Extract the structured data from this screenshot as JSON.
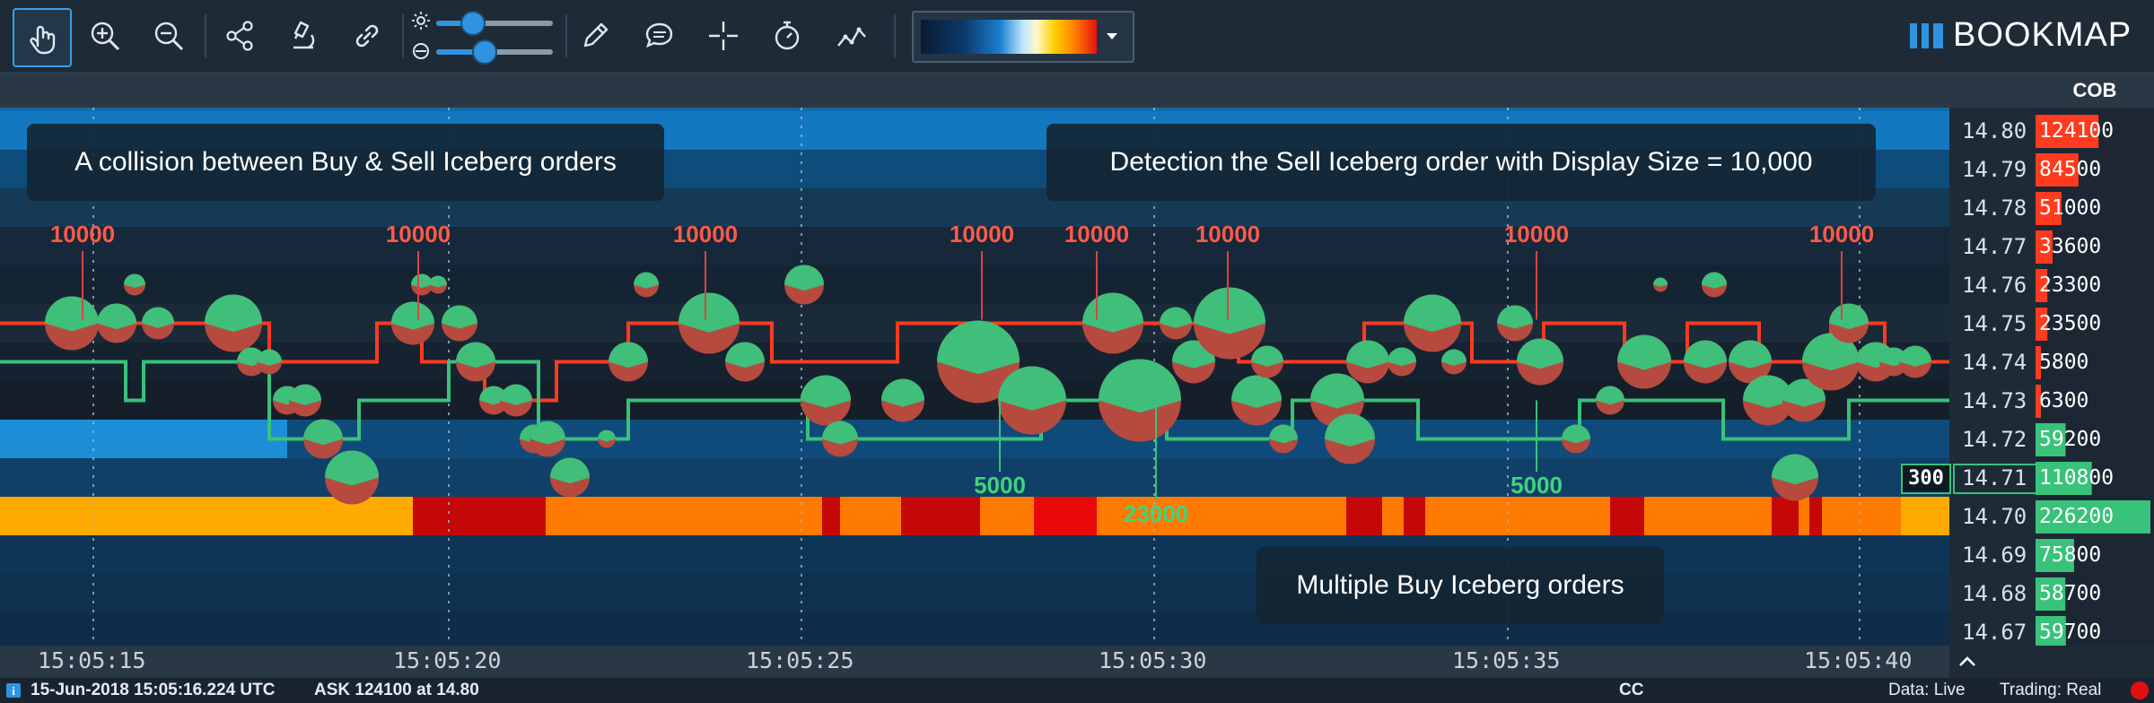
{
  "toolbar": {
    "tools": [
      {
        "name": "pointer-tool",
        "icon": "hand-pointer-icon",
        "active": true
      },
      {
        "name": "zoom-in",
        "icon": "zoom-in-icon"
      },
      {
        "name": "zoom-out",
        "icon": "zoom-out-icon"
      },
      {
        "name": "share",
        "icon": "share-icon"
      },
      {
        "name": "microscope",
        "icon": "microscope-icon"
      },
      {
        "name": "link",
        "icon": "link-icon"
      },
      {
        "name": "pencil",
        "icon": "pencil-icon"
      },
      {
        "name": "chat",
        "icon": "chat-icon"
      },
      {
        "name": "crosshair",
        "icon": "crosshair-icon"
      },
      {
        "name": "stopwatch",
        "icon": "stopwatch-icon"
      },
      {
        "name": "indicators",
        "icon": "chart-line-icon"
      }
    ],
    "brightness_slider": {
      "icon": "sun-icon",
      "value_fraction": 0.3
    },
    "contrast_slider": {
      "icon": "contrast-icon",
      "value_fraction": 0.4
    },
    "gradient_dropdown_icon": "caret-down-icon",
    "logo_text": "BOOKMAP"
  },
  "cob_header": "COB",
  "prices": [
    "14.80",
    "14.79",
    "14.78",
    "14.77",
    "14.76",
    "14.75",
    "14.74",
    "14.73",
    "14.72",
    "14.71",
    "14.70",
    "14.69",
    "14.68",
    "14.67"
  ],
  "cob_values": [
    "124100",
    "84500",
    "51000",
    "33600",
    "23300",
    "23500",
    "5800",
    "6300",
    "59200",
    "110800",
    "226200",
    "75800",
    "58700",
    "59700"
  ],
  "last_trade_size": "300",
  "time_labels": [
    "15:05:15",
    "15:05:20",
    "15:05:25",
    "15:05:30",
    "15:05:35",
    "15:05:40"
  ],
  "callouts": {
    "collision": "A collision between Buy & Sell Iceberg orders",
    "detection": "Detection the Sell Iceberg order with Display Size = 10,000",
    "multiple": "Multiple Buy Iceberg orders"
  },
  "sell_iceberg_labels": [
    "10000",
    "10000",
    "10000",
    "10000",
    "10000",
    "10000",
    "10000",
    "10000"
  ],
  "buy_iceberg_labels": [
    "5000",
    "23000",
    "5000"
  ],
  "status": {
    "info_icon": "info-icon",
    "datetime": "15-Jun-2018 15:05:16.224 UTC",
    "ask": "ASK 124100 at 14.80",
    "cc": "CC",
    "data": "Data: Live",
    "trading": "Trading: Real",
    "indicator_color": "#e01010"
  },
  "colors": {
    "accent": "#2f93e0",
    "ask": "#ff3b1f",
    "bid": "#38c27a",
    "heat_high": "#ff7a00"
  }
}
